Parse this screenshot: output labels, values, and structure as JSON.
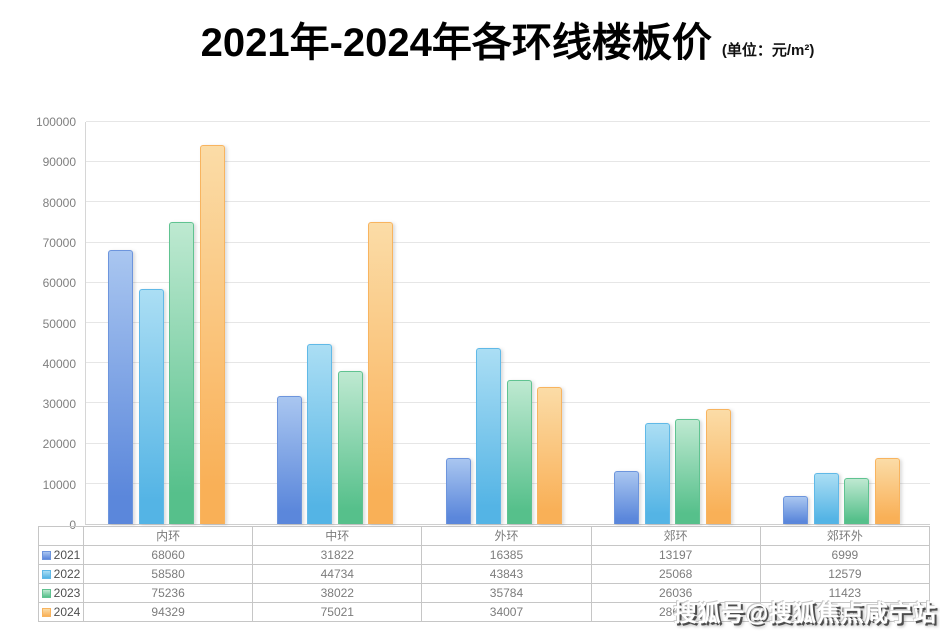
{
  "title": {
    "text": "2021年-2024年各环线楼板价",
    "unit": "(单位：元/m²)"
  },
  "watermark": {
    "text": "搜狐号@搜狐焦点咸宁站"
  },
  "chart_data": {
    "type": "bar",
    "title": "2021年-2024年各环线楼板价",
    "unit_label": "(单位：元/m²)",
    "categories": [
      "内环",
      "中环",
      "外环",
      "郊环",
      "郊环外"
    ],
    "series": [
      {
        "name": "2021",
        "color": "#5b87db",
        "color_light": "#a9c6f0",
        "border_color": "#6d95dd",
        "values": [
          68060,
          31822,
          16385,
          13197,
          6999
        ]
      },
      {
        "name": "2022",
        "color": "#54b4e5",
        "color_light": "#abdef4",
        "border_color": "#60b9e7",
        "values": [
          58580,
          44734,
          43843,
          25068,
          12579
        ]
      },
      {
        "name": "2023",
        "color": "#56c08b",
        "color_light": "#bee9d1",
        "border_color": "#60c391",
        "values": [
          75236,
          38022,
          35784,
          26036,
          11423
        ]
      },
      {
        "name": "2024",
        "color": "#f9b057",
        "color_light": "#fbdca7",
        "border_color": "#f8b45f",
        "values": [
          94329,
          75021,
          34007,
          28647,
          16500
        ]
      }
    ],
    "ylim": [
      0,
      100000
    ],
    "ytick_step": 10000,
    "grid": true,
    "legend_position": "table-left"
  }
}
